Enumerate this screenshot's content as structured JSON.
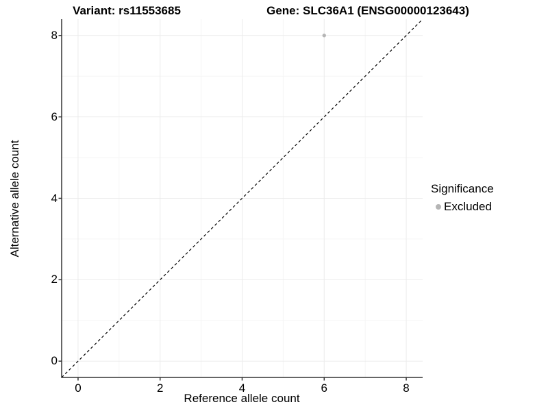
{
  "titles": {
    "variant": "Variant: rs11553685",
    "gene": "Gene: SLC36A1 (ENSG00000123643)"
  },
  "chart_data": {
    "type": "scatter",
    "xlabel": "Reference allele count",
    "ylabel": "Alternative allele count",
    "xlim": [
      -0.4,
      8.4
    ],
    "ylim": [
      -0.4,
      8.4
    ],
    "xticks": [
      0,
      2,
      4,
      6,
      8
    ],
    "yticks": [
      0,
      2,
      4,
      6,
      8
    ],
    "x_minor_gridlines": [
      1,
      3,
      5,
      7
    ],
    "y_minor_gridlines": [
      1,
      3,
      5,
      7
    ],
    "grid": "on",
    "points": [
      {
        "x": 6,
        "y": 8,
        "series": "Excluded"
      }
    ],
    "identity_line": {
      "slope": 1,
      "intercept": 0,
      "style": "dashed"
    },
    "legend": {
      "position": "right",
      "title": "Significance",
      "entries": [
        {
          "label": "Excluded",
          "color": "#b5b5b5"
        }
      ]
    }
  },
  "colors": {
    "background": "#ffffff",
    "axis_line": "#333333",
    "grid_major": "#ebebeb",
    "grid_minor": "#f5f5f5",
    "identity_line": "#000000",
    "point_excluded": "#b5b5b5",
    "text": "#000000"
  }
}
